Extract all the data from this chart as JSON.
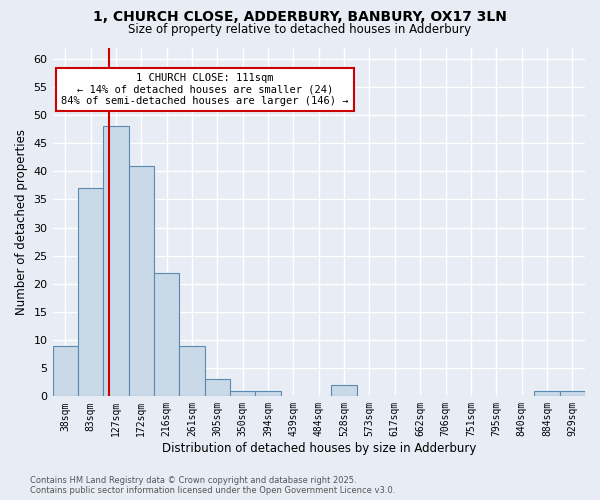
{
  "title_line1": "1, CHURCH CLOSE, ADDERBURY, BANBURY, OX17 3LN",
  "title_line2": "Size of property relative to detached houses in Adderbury",
  "xlabel": "Distribution of detached houses by size in Adderbury",
  "ylabel": "Number of detached properties",
  "bins": [
    "38sqm",
    "83sqm",
    "127sqm",
    "172sqm",
    "216sqm",
    "261sqm",
    "305sqm",
    "350sqm",
    "394sqm",
    "439sqm",
    "484sqm",
    "528sqm",
    "573sqm",
    "617sqm",
    "662sqm",
    "706sqm",
    "751sqm",
    "795sqm",
    "840sqm",
    "884sqm",
    "929sqm"
  ],
  "values": [
    9,
    37,
    48,
    41,
    22,
    9,
    3,
    1,
    1,
    0,
    0,
    2,
    0,
    0,
    0,
    0,
    0,
    0,
    0,
    1,
    1
  ],
  "bar_color": "#c9d9e8",
  "bar_edge_color": "#5a8ab0",
  "vline_x_index": 1.72,
  "vline_color": "#cc0000",
  "annotation_text": "1 CHURCH CLOSE: 111sqm\n← 14% of detached houses are smaller (24)\n84% of semi-detached houses are larger (146) →",
  "annotation_box_color": "white",
  "annotation_box_edge_color": "#cc0000",
  "ylim": [
    0,
    62
  ],
  "yticks": [
    0,
    5,
    10,
    15,
    20,
    25,
    30,
    35,
    40,
    45,
    50,
    55,
    60
  ],
  "footnote": "Contains HM Land Registry data © Crown copyright and database right 2025.\nContains public sector information licensed under the Open Government Licence v3.0.",
  "bg_color": "#e8edf5",
  "plot_bg_color": "#e8edf5",
  "grid_color": "#ffffff"
}
